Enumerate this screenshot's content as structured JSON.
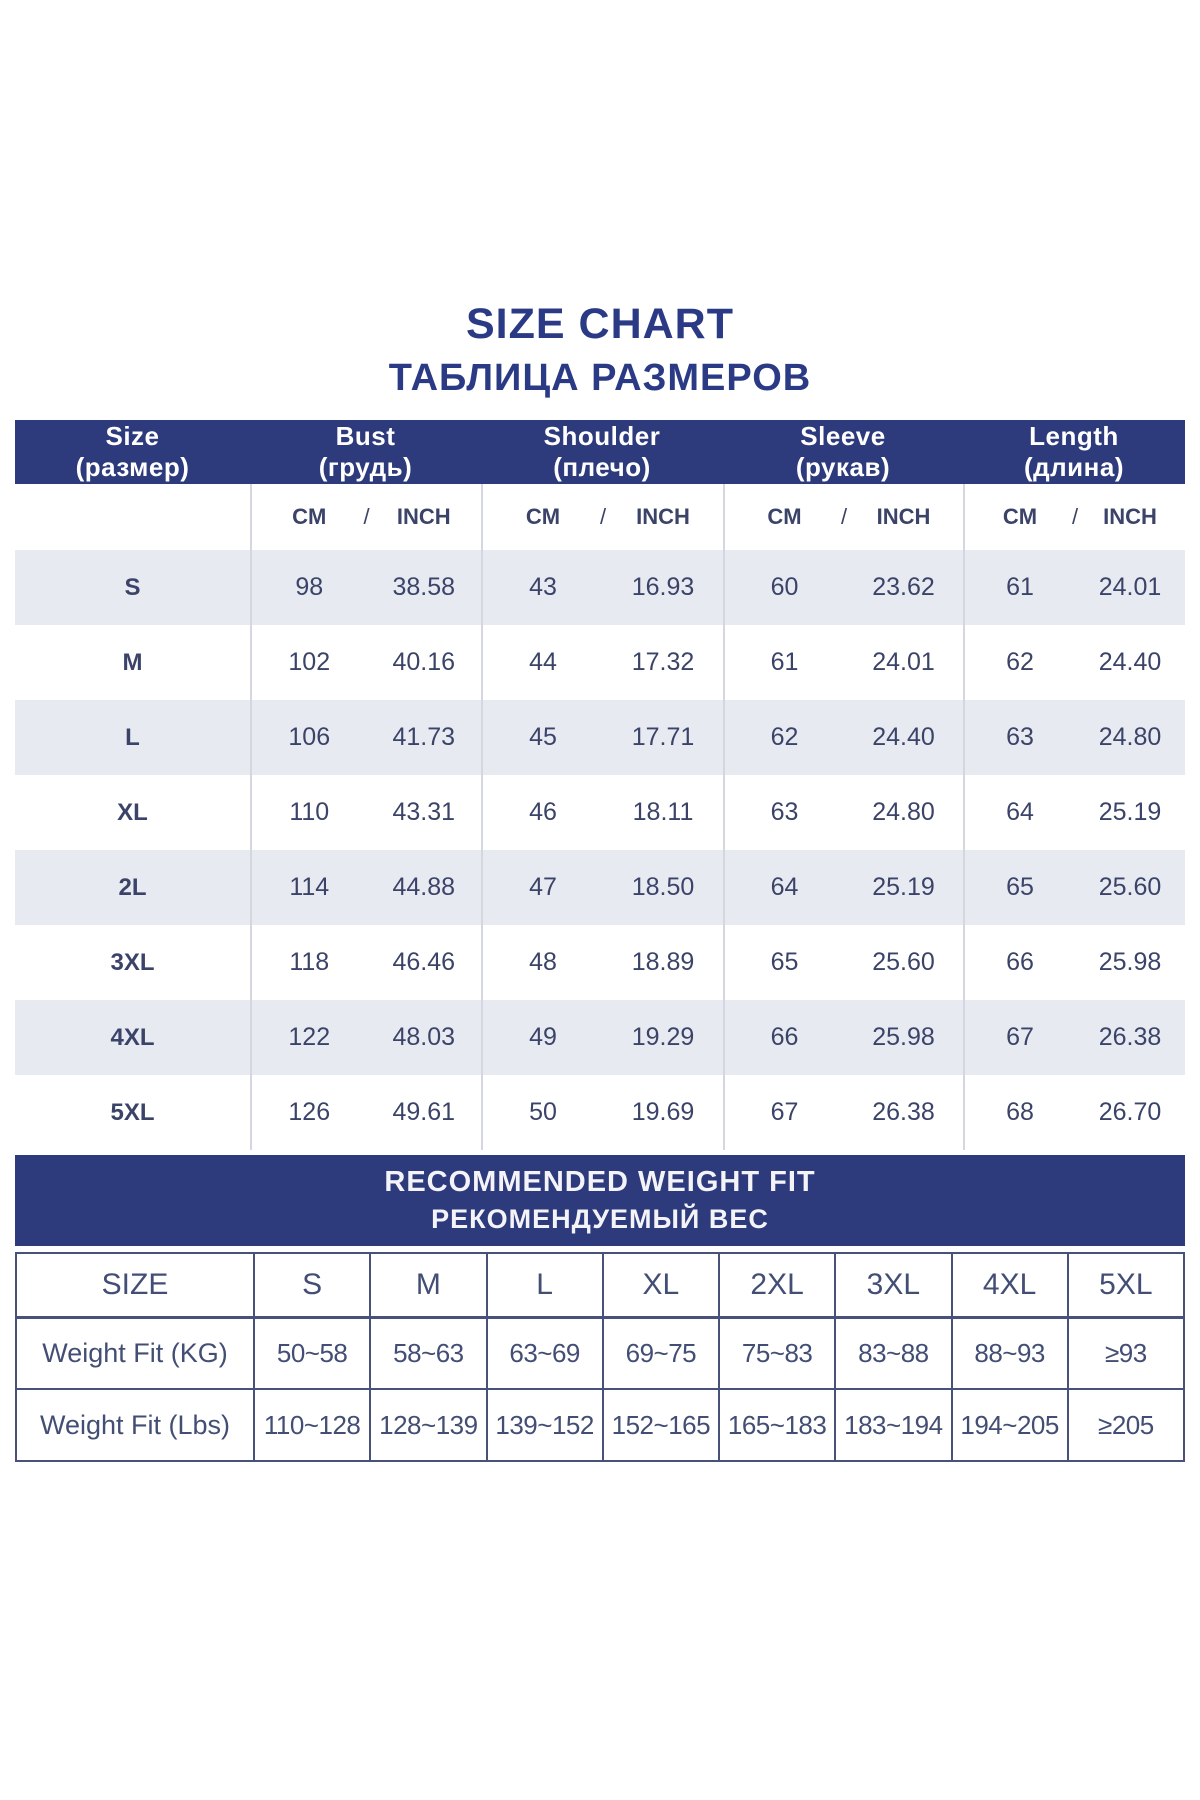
{
  "title": "SIZE CHART",
  "subtitle": "ТАБЛИЦА РАЗМЕРОВ",
  "colors": {
    "navy": "#2d3a7c",
    "title_text": "#2b3a85",
    "body_text": "#3b4468",
    "alt_row_bg": "#e8eaf2",
    "light_divider": "#d4d7e0",
    "weight_border": "#47517a"
  },
  "size_table": {
    "columns": [
      {
        "en": "Size",
        "ru": "(размер)"
      },
      {
        "en": "Bust",
        "ru": "(грудь)"
      },
      {
        "en": "Shoulder",
        "ru": "(плечо)"
      },
      {
        "en": "Sleeve",
        "ru": "(рукав)"
      },
      {
        "en": "Length",
        "ru": "(длина)"
      }
    ],
    "unit_cm": "CM",
    "unit_sep": "/",
    "unit_inch": "INCH",
    "rows": [
      {
        "size": "S",
        "measurements": [
          [
            "98",
            "38.58"
          ],
          [
            "43",
            "16.93"
          ],
          [
            "60",
            "23.62"
          ],
          [
            "61",
            "24.01"
          ]
        ]
      },
      {
        "size": "M",
        "measurements": [
          [
            "102",
            "40.16"
          ],
          [
            "44",
            "17.32"
          ],
          [
            "61",
            "24.01"
          ],
          [
            "62",
            "24.40"
          ]
        ]
      },
      {
        "size": "L",
        "measurements": [
          [
            "106",
            "41.73"
          ],
          [
            "45",
            "17.71"
          ],
          [
            "62",
            "24.40"
          ],
          [
            "63",
            "24.80"
          ]
        ]
      },
      {
        "size": "XL",
        "measurements": [
          [
            "110",
            "43.31"
          ],
          [
            "46",
            "18.11"
          ],
          [
            "63",
            "24.80"
          ],
          [
            "64",
            "25.19"
          ]
        ]
      },
      {
        "size": "2L",
        "measurements": [
          [
            "114",
            "44.88"
          ],
          [
            "47",
            "18.50"
          ],
          [
            "64",
            "25.19"
          ],
          [
            "65",
            "25.60"
          ]
        ]
      },
      {
        "size": "3XL",
        "measurements": [
          [
            "118",
            "46.46"
          ],
          [
            "48",
            "18.89"
          ],
          [
            "65",
            "25.60"
          ],
          [
            "66",
            "25.98"
          ]
        ]
      },
      {
        "size": "4XL",
        "measurements": [
          [
            "122",
            "48.03"
          ],
          [
            "49",
            "19.29"
          ],
          [
            "66",
            "25.98"
          ],
          [
            "67",
            "26.38"
          ]
        ]
      },
      {
        "size": "5XL",
        "measurements": [
          [
            "126",
            "49.61"
          ],
          [
            "50",
            "19.69"
          ],
          [
            "67",
            "26.38"
          ],
          [
            "68",
            "26.70"
          ]
        ]
      }
    ]
  },
  "weight_section": {
    "banner_en": "RECOMMENDED WEIGHT FIT",
    "banner_ru": "РЕКОМЕНДУЕМЫЙ ВЕС",
    "header": [
      "SIZE",
      "S",
      "M",
      "L",
      "XL",
      "2XL",
      "3XL",
      "4XL",
      "5XL"
    ],
    "rows": [
      {
        "label": "Weight Fit (KG)",
        "values": [
          "50~58",
          "58~63",
          "63~69",
          "69~75",
          "75~83",
          "83~88",
          "88~93",
          "≥93"
        ]
      },
      {
        "label": "Weight Fit (Lbs)",
        "values": [
          "110~128",
          "128~139",
          "139~152",
          "152~165",
          "165~183",
          "183~194",
          "194~205",
          "≥205"
        ]
      }
    ]
  },
  "chart_data": [
    {
      "type": "table",
      "title": "SIZE CHART / ТАБЛИЦА РАЗМЕРОВ",
      "columns": [
        "Size (размер)",
        "Bust CM",
        "Bust INCH",
        "Shoulder CM",
        "Shoulder INCH",
        "Sleeve CM",
        "Sleeve INCH",
        "Length CM",
        "Length INCH"
      ],
      "rows": [
        [
          "S",
          98,
          "38.58",
          43,
          "16.93",
          60,
          "23.62",
          61,
          "24.01"
        ],
        [
          "M",
          102,
          "40.16",
          44,
          "17.32",
          61,
          "24.01",
          62,
          "24.40"
        ],
        [
          "L",
          106,
          "41.73",
          45,
          "17.71",
          62,
          "24.40",
          63,
          "24.80"
        ],
        [
          "XL",
          110,
          "43.31",
          46,
          "18.11",
          63,
          "24.80",
          64,
          "25.19"
        ],
        [
          "2L",
          114,
          "44.88",
          47,
          "18.50",
          64,
          "25.19",
          65,
          "25.60"
        ],
        [
          "3XL",
          118,
          "46.46",
          48,
          "18.89",
          65,
          "25.60",
          66,
          "25.98"
        ],
        [
          "4XL",
          122,
          "48.03",
          49,
          "19.29",
          66,
          "25.98",
          67,
          "26.38"
        ],
        [
          "5XL",
          126,
          "49.61",
          50,
          "19.69",
          67,
          "26.38",
          68,
          "26.70"
        ]
      ]
    },
    {
      "type": "table",
      "title": "RECOMMENDED WEIGHT FIT / РЕКОМЕНДУЕМЫЙ ВЕС",
      "columns": [
        "SIZE",
        "S",
        "M",
        "L",
        "XL",
        "2XL",
        "3XL",
        "4XL",
        "5XL"
      ],
      "rows": [
        [
          "Weight Fit (KG)",
          "50~58",
          "58~63",
          "63~69",
          "69~75",
          "75~83",
          "83~88",
          "88~93",
          "≥93"
        ],
        [
          "Weight Fit (Lbs)",
          "110~128",
          "128~139",
          "139~152",
          "152~165",
          "165~183",
          "183~194",
          "194~205",
          "≥205"
        ]
      ]
    }
  ]
}
